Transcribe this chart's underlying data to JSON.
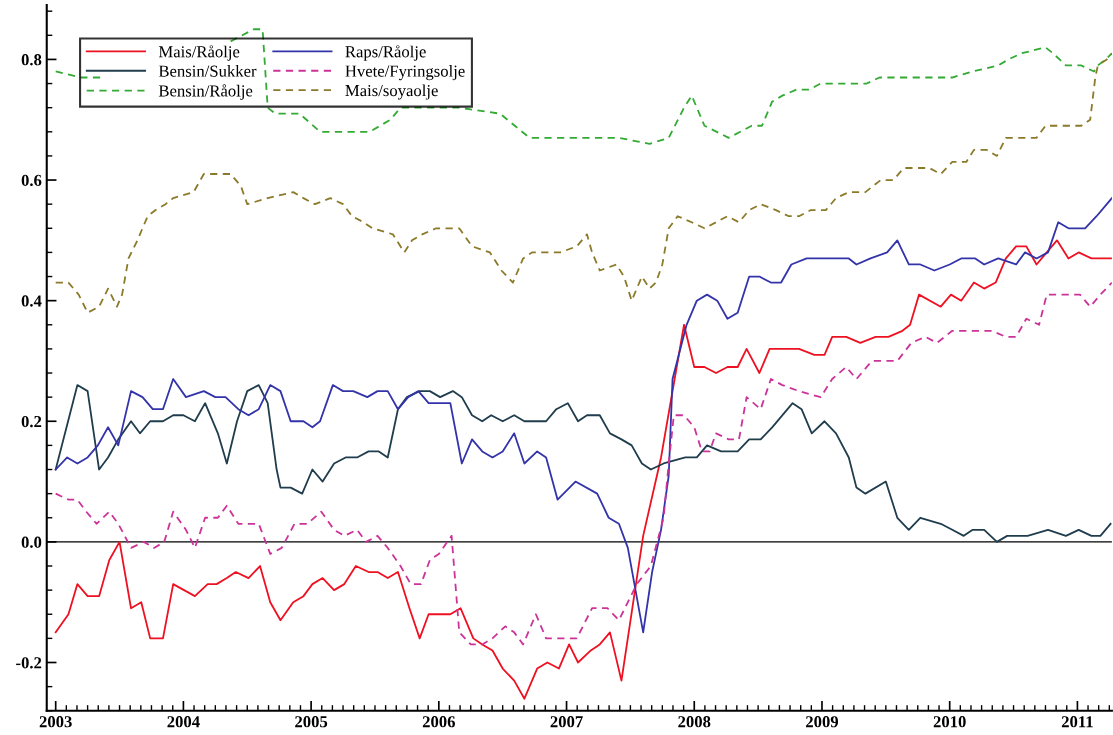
{
  "chart_data": {
    "type": "line",
    "legend": "top left",
    "grid": false,
    "xlim": [
      2002.93,
      2011.27
    ],
    "xticks": [
      2003,
      2004,
      2005,
      2006,
      2007,
      2008,
      2009,
      2010,
      2011
    ],
    "ylim": [
      -0.28,
      0.89
    ],
    "yticks": [
      -0.2,
      {
        "value": 0,
        "label": "0.0"
      },
      0.2,
      0.4,
      0.6,
      0.8
    ],
    "ref_lines": [
      {
        "axis": "y",
        "value": 0,
        "color": "#000000",
        "line_style": "solid"
      }
    ],
    "series": [
      {
        "name": "Mais/Råolje",
        "color": "#ee1122",
        "line_style": "solid",
        "x": [
          2003.0,
          2003.1,
          2003.17,
          2003.25,
          2003.34,
          2003.42,
          2003.5,
          2003.59,
          2003.67,
          2003.74,
          2003.84,
          2003.92,
          2004.09,
          2004.19,
          2004.26,
          2004.34,
          2004.41,
          2004.51,
          2004.6,
          2004.68,
          2004.76,
          2004.86,
          2004.94,
          2005.01,
          2005.09,
          2005.18,
          2005.26,
          2005.35,
          2005.45,
          2005.52,
          2005.6,
          2005.68,
          2005.77,
          2005.85,
          2005.92,
          2005.99,
          2006.09,
          2006.17,
          2006.27,
          2006.34,
          2006.42,
          2006.5,
          2006.59,
          2006.67,
          2006.77,
          2006.85,
          2006.94,
          2007.02,
          2007.09,
          2007.19,
          2007.26,
          2007.34,
          2007.43,
          2007.6,
          2007.74,
          2007.92,
          2008.0,
          2008.08,
          2008.17,
          2008.26,
          2008.34,
          2008.41,
          2008.51,
          2008.59,
          2008.69,
          2008.82,
          2008.94,
          2009.02,
          2009.08,
          2009.19,
          2009.3,
          2009.42,
          2009.52,
          2009.63,
          2009.69,
          2009.76,
          2009.93,
          2010.01,
          2010.09,
          2010.19,
          2010.27,
          2010.36,
          2010.44,
          2010.52,
          2010.6,
          2010.68,
          2010.76,
          2010.84,
          2010.93,
          2011.01,
          2011.11,
          2011.27
        ],
        "values": [
          -0.15,
          -0.12,
          -0.07,
          -0.09,
          -0.09,
          -0.03,
          0.0,
          -0.11,
          -0.1,
          -0.16,
          -0.16,
          -0.07,
          -0.09,
          -0.07,
          -0.07,
          -0.06,
          -0.05,
          -0.06,
          -0.04,
          -0.1,
          -0.13,
          -0.1,
          -0.09,
          -0.07,
          -0.06,
          -0.08,
          -0.07,
          -0.04,
          -0.05,
          -0.05,
          -0.06,
          -0.05,
          -0.11,
          -0.16,
          -0.12,
          -0.12,
          -0.12,
          -0.11,
          -0.16,
          -0.17,
          -0.18,
          -0.21,
          -0.23,
          -0.26,
          -0.21,
          -0.2,
          -0.21,
          -0.17,
          -0.2,
          -0.18,
          -0.17,
          -0.15,
          -0.23,
          0.01,
          0.14,
          0.36,
          0.29,
          0.29,
          0.28,
          0.29,
          0.29,
          0.32,
          0.28,
          0.32,
          0.32,
          0.32,
          0.31,
          0.31,
          0.34,
          0.34,
          0.33,
          0.34,
          0.34,
          0.35,
          0.36,
          0.41,
          0.39,
          0.41,
          0.4,
          0.43,
          0.42,
          0.43,
          0.47,
          0.49,
          0.49,
          0.46,
          0.48,
          0.5,
          0.47,
          0.48,
          0.47,
          0.47
        ]
      },
      {
        "name": "Bensin/Sukker",
        "color": "#1f3d4d",
        "line_style": "solid",
        "x": [
          2003.0,
          2003.17,
          2003.25,
          2003.34,
          2003.41,
          2003.49,
          2003.59,
          2003.66,
          2003.74,
          2003.84,
          2003.92,
          2004.0,
          2004.09,
          2004.17,
          2004.27,
          2004.34,
          2004.42,
          2004.5,
          2004.59,
          2004.66,
          2004.73,
          2004.76,
          2004.84,
          2004.93,
          2005.01,
          2005.09,
          2005.18,
          2005.27,
          2005.36,
          2005.45,
          2005.53,
          2005.6,
          2005.68,
          2005.75,
          2005.85,
          2005.93,
          2006.01,
          2006.11,
          2006.18,
          2006.26,
          2006.34,
          2006.41,
          2006.5,
          2006.59,
          2006.67,
          2006.75,
          2006.84,
          2006.92,
          2007.01,
          2007.09,
          2007.16,
          2007.26,
          2007.34,
          2007.43,
          2007.51,
          2007.59,
          2007.66,
          2007.76,
          2007.93,
          2008.02,
          2008.1,
          2008.21,
          2008.34,
          2008.43,
          2008.52,
          2008.61,
          2008.77,
          2008.84,
          2008.92,
          2009.02,
          2009.11,
          2009.21,
          2009.27,
          2009.34,
          2009.5,
          2009.59,
          2009.68,
          2009.77,
          2009.93,
          2010.02,
          2010.11,
          2010.18,
          2010.27,
          2010.37,
          2010.45,
          2010.61,
          2010.77,
          2010.91,
          2011.01,
          2011.11,
          2011.18,
          2011.26
        ],
        "values": [
          0.12,
          0.26,
          0.25,
          0.12,
          0.14,
          0.17,
          0.2,
          0.18,
          0.2,
          0.2,
          0.21,
          0.21,
          0.2,
          0.23,
          0.18,
          0.13,
          0.2,
          0.25,
          0.26,
          0.23,
          0.12,
          0.09,
          0.09,
          0.08,
          0.12,
          0.1,
          0.13,
          0.14,
          0.14,
          0.15,
          0.15,
          0.14,
          0.22,
          0.24,
          0.25,
          0.25,
          0.24,
          0.25,
          0.24,
          0.21,
          0.2,
          0.21,
          0.2,
          0.21,
          0.2,
          0.2,
          0.2,
          0.22,
          0.23,
          0.2,
          0.21,
          0.21,
          0.18,
          0.17,
          0.16,
          0.13,
          0.12,
          0.13,
          0.14,
          0.14,
          0.16,
          0.15,
          0.15,
          0.17,
          0.17,
          0.19,
          0.23,
          0.22,
          0.18,
          0.2,
          0.18,
          0.14,
          0.09,
          0.08,
          0.1,
          0.04,
          0.02,
          0.04,
          0.03,
          0.02,
          0.01,
          0.02,
          0.02,
          0.0,
          0.01,
          0.01,
          0.02,
          0.01,
          0.02,
          0.01,
          0.01,
          0.03
        ]
      },
      {
        "name": "Bensin/Råolje",
        "color": "#33aa33",
        "line_style": "dashed",
        "x": [
          2003.0,
          2003.2,
          2003.35,
          2003.8,
          2004.37,
          2004.55,
          2004.62,
          2004.66,
          2004.72,
          2004.91,
          2005.07,
          2005.46,
          2005.62,
          2005.7,
          2006.01,
          2006.16,
          2006.48,
          2006.71,
          2006.95,
          2007.41,
          2007.65,
          2007.8,
          2007.92,
          2007.98,
          2008.08,
          2008.27,
          2008.45,
          2008.53,
          2008.61,
          2008.69,
          2008.8,
          2008.9,
          2008.99,
          2009.11,
          2009.35,
          2009.45,
          2009.55,
          2009.73,
          2010.02,
          2010.18,
          2010.38,
          2010.46,
          2010.56,
          2010.75,
          2010.81,
          2010.91,
          2011.03,
          2011.13,
          2011.16,
          2011.22,
          2011.27
        ],
        "values": [
          0.78,
          0.77,
          0.77,
          null,
          0.83,
          0.85,
          0.85,
          0.72,
          0.71,
          0.71,
          0.68,
          0.68,
          0.7,
          0.72,
          0.72,
          0.72,
          0.71,
          0.67,
          0.67,
          0.67,
          0.66,
          0.67,
          0.72,
          0.74,
          0.69,
          0.67,
          0.69,
          0.69,
          0.73,
          0.74,
          0.75,
          0.75,
          0.76,
          0.76,
          0.76,
          0.77,
          0.77,
          0.77,
          0.77,
          0.78,
          0.79,
          0.8,
          0.81,
          0.82,
          0.81,
          0.79,
          0.79,
          0.78,
          0.79,
          0.8,
          0.81
        ]
      },
      {
        "name": "Raps/Råolje",
        "color": "#3333aa",
        "line_style": "solid",
        "x": [
          2003.0,
          2003.09,
          2003.17,
          2003.25,
          2003.33,
          2003.41,
          2003.49,
          2003.59,
          2003.68,
          2003.76,
          2003.84,
          2003.92,
          2004.02,
          2004.16,
          2004.25,
          2004.33,
          2004.43,
          2004.51,
          2004.59,
          2004.68,
          2004.76,
          2004.84,
          2004.94,
          2005.01,
          2005.07,
          2005.17,
          2005.25,
          2005.33,
          2005.44,
          2005.52,
          2005.6,
          2005.68,
          2005.76,
          2005.84,
          2005.92,
          2006.01,
          2006.09,
          2006.18,
          2006.26,
          2006.34,
          2006.42,
          2006.5,
          2006.59,
          2006.67,
          2006.77,
          2006.84,
          2006.93,
          2007.07,
          2007.24,
          2007.33,
          2007.41,
          2007.48,
          2007.6,
          2007.67,
          2007.74,
          2007.8,
          2007.83,
          2007.94,
          2008.02,
          2008.1,
          2008.18,
          2008.26,
          2008.34,
          2008.43,
          2008.51,
          2008.6,
          2008.68,
          2008.76,
          2008.88,
          2009.08,
          2009.21,
          2009.27,
          2009.38,
          2009.51,
          2009.59,
          2009.68,
          2009.77,
          2009.88,
          2010.0,
          2010.09,
          2010.2,
          2010.27,
          2010.38,
          2010.52,
          2010.59,
          2010.68,
          2010.77,
          2010.85,
          2010.93,
          2011.06,
          2011.15,
          2011.27
        ],
        "values": [
          0.12,
          0.14,
          0.13,
          0.14,
          0.16,
          0.19,
          0.16,
          0.25,
          0.24,
          0.22,
          0.22,
          0.27,
          0.24,
          0.25,
          0.24,
          0.24,
          0.22,
          0.21,
          0.22,
          0.26,
          0.25,
          0.2,
          0.2,
          0.19,
          0.2,
          0.26,
          0.25,
          0.25,
          0.24,
          0.25,
          0.25,
          0.22,
          0.24,
          0.25,
          0.23,
          0.23,
          0.23,
          0.13,
          0.17,
          0.15,
          0.14,
          0.15,
          0.18,
          0.13,
          0.15,
          0.14,
          0.07,
          0.1,
          0.08,
          0.04,
          0.03,
          -0.01,
          -0.15,
          -0.05,
          0.02,
          0.11,
          0.27,
          0.36,
          0.4,
          0.41,
          0.4,
          0.37,
          0.38,
          0.44,
          0.44,
          0.43,
          0.43,
          0.46,
          0.47,
          0.47,
          0.47,
          0.46,
          0.47,
          0.48,
          0.5,
          0.46,
          0.46,
          0.45,
          0.46,
          0.47,
          0.47,
          0.46,
          0.47,
          0.46,
          0.48,
          0.47,
          0.48,
          0.53,
          0.52,
          0.52,
          0.54,
          0.57
        ]
      },
      {
        "name": "Hvete/Fyringsolje",
        "color": "#cc3399",
        "line_style": "dashed",
        "x": [
          2003.0,
          2003.1,
          2003.17,
          2003.24,
          2003.32,
          2003.42,
          2003.49,
          2003.59,
          2003.69,
          2003.77,
          2003.85,
          2003.92,
          2004.02,
          2004.09,
          2004.17,
          2004.27,
          2004.34,
          2004.43,
          2004.59,
          2004.68,
          2004.77,
          2004.87,
          2004.97,
          2005.08,
          2005.18,
          2005.26,
          2005.36,
          2005.43,
          2005.52,
          2005.6,
          2005.7,
          2005.78,
          2005.86,
          2005.93,
          2006.0,
          2006.1,
          2006.16,
          2006.25,
          2006.34,
          2006.42,
          2006.52,
          2006.59,
          2006.66,
          2006.76,
          2006.84,
          2006.94,
          2007.08,
          2007.2,
          2007.32,
          2007.41,
          2007.55,
          2007.66,
          2007.76,
          2007.8,
          2007.84,
          2007.92,
          2008.0,
          2008.06,
          2008.12,
          2008.17,
          2008.27,
          2008.35,
          2008.41,
          2008.52,
          2008.6,
          2008.69,
          2008.82,
          2008.99,
          2009.08,
          2009.19,
          2009.27,
          2009.39,
          2009.5,
          2009.59,
          2009.7,
          2009.81,
          2009.9,
          2010.02,
          2010.15,
          2010.33,
          2010.44,
          2010.52,
          2010.6,
          2010.7,
          2010.76,
          2010.89,
          2011.02,
          2011.1,
          2011.18,
          2011.27
        ],
        "values": [
          0.08,
          0.07,
          0.07,
          0.05,
          0.03,
          0.05,
          0.03,
          -0.01,
          0.0,
          -0.01,
          0.0,
          0.05,
          0.02,
          -0.01,
          0.04,
          0.04,
          0.06,
          0.03,
          0.03,
          -0.02,
          -0.01,
          0.03,
          0.03,
          0.05,
          0.02,
          0.01,
          0.02,
          0.0,
          0.01,
          -0.01,
          -0.04,
          -0.07,
          -0.07,
          -0.03,
          -0.02,
          0.01,
          -0.15,
          -0.17,
          -0.17,
          -0.16,
          -0.14,
          -0.15,
          -0.17,
          -0.12,
          -0.16,
          -0.16,
          -0.16,
          -0.11,
          -0.11,
          -0.13,
          -0.07,
          -0.04,
          0.04,
          0.13,
          0.21,
          0.21,
          0.19,
          0.15,
          0.15,
          0.18,
          0.17,
          0.17,
          0.24,
          0.22,
          0.27,
          0.26,
          0.25,
          0.24,
          0.27,
          0.29,
          0.27,
          0.3,
          0.3,
          0.3,
          0.33,
          0.34,
          0.33,
          0.35,
          0.35,
          0.35,
          0.34,
          0.34,
          0.37,
          0.36,
          0.41,
          0.41,
          0.41,
          0.39,
          0.41,
          0.43
        ]
      },
      {
        "name": "Mais/soyaolje",
        "color": "#8b7a2a",
        "line_style": "dashed",
        "x": [
          2003.0,
          2003.1,
          2003.18,
          2003.25,
          2003.34,
          2003.41,
          2003.48,
          2003.52,
          2003.57,
          2003.64,
          2003.72,
          2003.78,
          2003.86,
          2003.92,
          2004.08,
          2004.16,
          2004.37,
          2004.45,
          2004.5,
          2004.66,
          2004.86,
          2004.94,
          2005.03,
          2005.15,
          2005.25,
          2005.32,
          2005.41,
          2005.48,
          2005.64,
          2005.73,
          2005.79,
          2005.87,
          2005.98,
          2006.16,
          2006.26,
          2006.4,
          2006.49,
          2006.58,
          2006.66,
          2006.73,
          2006.95,
          2007.08,
          2007.16,
          2007.2,
          2007.26,
          2007.39,
          2007.45,
          2007.51,
          2007.59,
          2007.65,
          2007.7,
          2007.75,
          2007.8,
          2007.87,
          2007.98,
          2008.08,
          2008.17,
          2008.26,
          2008.35,
          2008.43,
          2008.52,
          2008.64,
          2008.74,
          2008.82,
          2008.91,
          2009.03,
          2009.11,
          2009.21,
          2009.34,
          2009.46,
          2009.56,
          2009.64,
          2009.73,
          2009.84,
          2009.93,
          2010.02,
          2010.13,
          2010.19,
          2010.29,
          2010.37,
          2010.44,
          2010.55,
          2010.68,
          2010.75,
          2010.85,
          2011.03,
          2011.1,
          2011.14,
          2011.16,
          2011.23,
          2011.27
        ],
        "values": [
          0.43,
          0.43,
          0.41,
          0.38,
          0.39,
          0.42,
          0.39,
          0.41,
          0.47,
          0.5,
          0.54,
          0.55,
          0.56,
          0.57,
          0.58,
          0.61,
          0.61,
          0.59,
          0.56,
          0.57,
          0.58,
          0.57,
          0.56,
          0.57,
          0.56,
          0.54,
          0.53,
          0.52,
          0.51,
          0.48,
          0.5,
          0.51,
          0.52,
          0.52,
          0.49,
          0.48,
          0.45,
          0.43,
          0.47,
          0.48,
          0.48,
          0.49,
          0.51,
          0.48,
          0.45,
          0.46,
          0.44,
          0.4,
          0.44,
          0.42,
          0.43,
          0.46,
          0.52,
          0.54,
          0.53,
          0.52,
          0.53,
          0.54,
          0.53,
          0.55,
          0.56,
          0.55,
          0.54,
          0.54,
          0.55,
          0.55,
          0.57,
          0.58,
          0.58,
          0.6,
          0.6,
          0.62,
          0.62,
          0.62,
          0.61,
          0.63,
          0.63,
          0.65,
          0.65,
          0.64,
          0.67,
          0.67,
          0.67,
          0.69,
          0.69,
          0.69,
          0.7,
          0.77,
          0.79,
          0.8,
          0.81
        ]
      }
    ]
  }
}
